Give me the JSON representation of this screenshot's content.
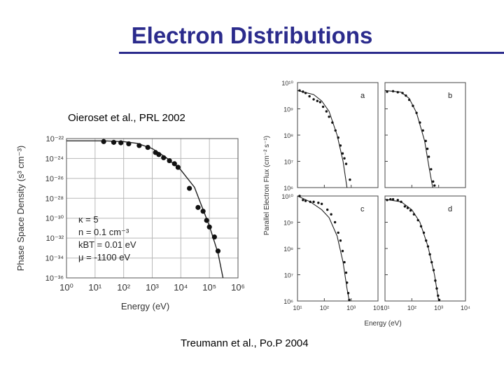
{
  "title": "Electron Distributions",
  "captions": {
    "left": "Oieroset et al., PRL 2002",
    "right": "Treumann et al., Po.P 2004"
  },
  "chart_data": [
    {
      "type": "scatter",
      "title": "",
      "xlabel": "Energy (eV)",
      "ylabel": "Phase Space Density (s³ cm⁻³)",
      "x_scale": "log",
      "y_scale": "log",
      "xlim": [
        1,
        1000000
      ],
      "ylim": [
        1e-36,
        1e-22
      ],
      "x_ticks": [
        "10⁰",
        "10¹",
        "10²",
        "10³",
        "10⁴",
        "10⁵",
        "10⁶"
      ],
      "y_ticks": [
        "10⁻²²",
        "10⁻²⁴",
        "10⁻²⁶",
        "10⁻²⁸",
        "10⁻³⁰",
        "10⁻³²",
        "10⁻³⁴",
        "10⁻³⁶"
      ],
      "annotations": [
        "κ = 5",
        "n = 0.1 cm⁻³",
        "kBT = 0.01 eV",
        "μ = -1100 eV"
      ],
      "series": [
        {
          "points": [
            [
              20,
              5e-23
            ],
            [
              45,
              4.2e-23
            ],
            [
              80,
              3.8e-23
            ],
            [
              150,
              3e-23
            ],
            [
              350,
              2e-23
            ],
            [
              700,
              1.3e-23
            ],
            [
              1300,
              4e-24
            ],
            [
              1700,
              2.5e-24
            ],
            [
              2500,
              1.2e-24
            ],
            [
              4000,
              6e-25
            ],
            [
              6000,
              3e-25
            ],
            [
              8000,
              1.3e-25
            ],
            [
              20000,
              1e-27
            ],
            [
              40000,
              1.2e-29
            ],
            [
              60000,
              5e-30
            ],
            [
              80000,
              6e-31
            ],
            [
              100000,
              1.3e-31
            ],
            [
              150000,
              1.3e-32
            ],
            [
              200000,
              5e-34
            ]
          ]
        },
        {
          "type": "line",
          "points": [
            [
              1,
              6e-23
            ],
            [
              20,
              6e-23
            ],
            [
              100,
              5e-23
            ],
            [
              300,
              3.3e-23
            ],
            [
              1000,
              1e-23
            ],
            [
              3000,
              1.3e-24
            ],
            [
              10000,
              7e-26
            ],
            [
              30000,
              1.3e-27
            ],
            [
              100000,
              1.6e-31
            ],
            [
              200000,
              3e-34
            ],
            [
              300000,
              1e-36
            ]
          ]
        }
      ]
    },
    {
      "type": "scatter",
      "panels": [
        "a",
        "b",
        "c",
        "d"
      ],
      "xlabel": "Energy (eV)",
      "ylabel": "Parallel Electron Flux (cm⁻² s⁻¹)",
      "x_scale": "log",
      "y_scale": "log",
      "xlim": [
        10,
        10000
      ],
      "ylim": [
        1000000.0,
        10000000000.0
      ],
      "x_ticks": [
        "10¹",
        "10²",
        "10³",
        "10⁴"
      ],
      "y_ticks": [
        "10¹⁰",
        "10⁹",
        "10⁸",
        "10⁷",
        "10⁶"
      ],
      "panel_data": [
        {
          "label": "a",
          "points": [
            [
              12,
              5000000000.0
            ],
            [
              16,
              4500000000.0
            ],
            [
              20,
              4000000000.0
            ],
            [
              28,
              3000000000.0
            ],
            [
              40,
              2300000000.0
            ],
            [
              55,
              2000000000.0
            ],
            [
              70,
              1800000000.0
            ],
            [
              90,
              1200000000.0
            ],
            [
              120,
              800000000.0
            ],
            [
              150,
              500000000.0
            ],
            [
              200,
              300000000.0
            ],
            [
              260,
              150000000.0
            ],
            [
              330,
              80000000.0
            ],
            [
              400,
              40000000.0
            ],
            [
              480,
              20000000.0
            ],
            [
              560,
              13000000.0
            ],
            [
              650,
              8000000.0
            ],
            [
              900,
              2000000.0
            ]
          ],
          "fit": [
            [
              10,
              5000000000.0
            ],
            [
              40,
              3500000000.0
            ],
            [
              80,
              2000000000.0
            ],
            [
              150,
              800000000.0
            ],
            [
              300,
              100000000.0
            ],
            [
              500,
              10000000.0
            ],
            [
              700,
              1000000.0
            ]
          ]
        },
        {
          "label": "b",
          "points": [
            [
              12,
              4500000000.0
            ],
            [
              20,
              4700000000.0
            ],
            [
              30,
              4300000000.0
            ],
            [
              45,
              4000000000.0
            ],
            [
              60,
              3200000000.0
            ],
            [
              80,
              2200000000.0
            ],
            [
              110,
              1300000000.0
            ],
            [
              150,
              700000000.0
            ],
            [
              200,
              300000000.0
            ],
            [
              260,
              150000000.0
            ],
            [
              330,
              60000000.0
            ],
            [
              380,
              30000000.0
            ],
            [
              430,
              15000000.0
            ],
            [
              520,
              5000000.0
            ],
            [
              620,
              1700000.0
            ],
            [
              700,
              1200000.0
            ]
          ],
          "fit": [
            [
              10,
              5000000000.0
            ],
            [
              40,
              4300000000.0
            ],
            [
              80,
              2500000000.0
            ],
            [
              150,
              700000000.0
            ],
            [
              300,
              60000000.0
            ],
            [
              450,
              5000000.0
            ],
            [
              600,
              1000000.0
            ]
          ]
        },
        {
          "label": "c",
          "points": [
            [
              12,
              10000000000.0
            ],
            [
              16,
              7000000000.0
            ],
            [
              20,
              6500000000.0
            ],
            [
              30,
              6000000000.0
            ],
            [
              40,
              6000000000.0
            ],
            [
              60,
              5500000000.0
            ],
            [
              80,
              5000000000.0
            ],
            [
              130,
              3000000000.0
            ],
            [
              180,
              2000000000.0
            ],
            [
              250,
              1000000000.0
            ],
            [
              330,
              400000000.0
            ],
            [
              400,
              200000000.0
            ],
            [
              480,
              80000000.0
            ],
            [
              560,
              30000000.0
            ],
            [
              650,
              12000000.0
            ],
            [
              700,
              5000000.0
            ],
            [
              780,
              2000000.0
            ],
            [
              850,
              1100000.0
            ]
          ],
          "fit": [
            [
              10,
              10000000000.0
            ],
            [
              30,
              6000000000.0
            ],
            [
              80,
              3000000000.0
            ],
            [
              150,
              1500000000.0
            ],
            [
              300,
              300000000.0
            ],
            [
              500,
              30000000.0
            ],
            [
              700,
              3000000.0
            ],
            [
              850,
              1000000.0
            ]
          ]
        },
        {
          "label": "d",
          "points": [
            [
              12,
              7000000000.0
            ],
            [
              16,
              7500000000.0
            ],
            [
              20,
              7500000000.0
            ],
            [
              30,
              7000000000.0
            ],
            [
              40,
              6000000000.0
            ],
            [
              55,
              4000000000.0
            ],
            [
              70,
              3500000000.0
            ],
            [
              90,
              2800000000.0
            ],
            [
              120,
              2000000000.0
            ],
            [
              170,
              1200000000.0
            ],
            [
              220,
              700000000.0
            ],
            [
              280,
              400000000.0
            ],
            [
              340,
              200000000.0
            ],
            [
              400,
              120000000.0
            ],
            [
              470,
              60000000.0
            ],
            [
              550,
              30000000.0
            ],
            [
              650,
              15000000.0
            ],
            [
              750,
              6000000.0
            ],
            [
              850,
              3000000.0
            ],
            [
              950,
              1600000.0
            ],
            [
              1050,
              1100000.0
            ]
          ],
          "fit": [
            [
              10,
              7500000000.0
            ],
            [
              40,
              6000000000.0
            ],
            [
              100,
              3000000000.0
            ],
            [
              200,
              1000000000.0
            ],
            [
              400,
              120000000.0
            ],
            [
              700,
              10000000.0
            ],
            [
              1000,
              1000000.0
            ]
          ]
        }
      ]
    }
  ]
}
